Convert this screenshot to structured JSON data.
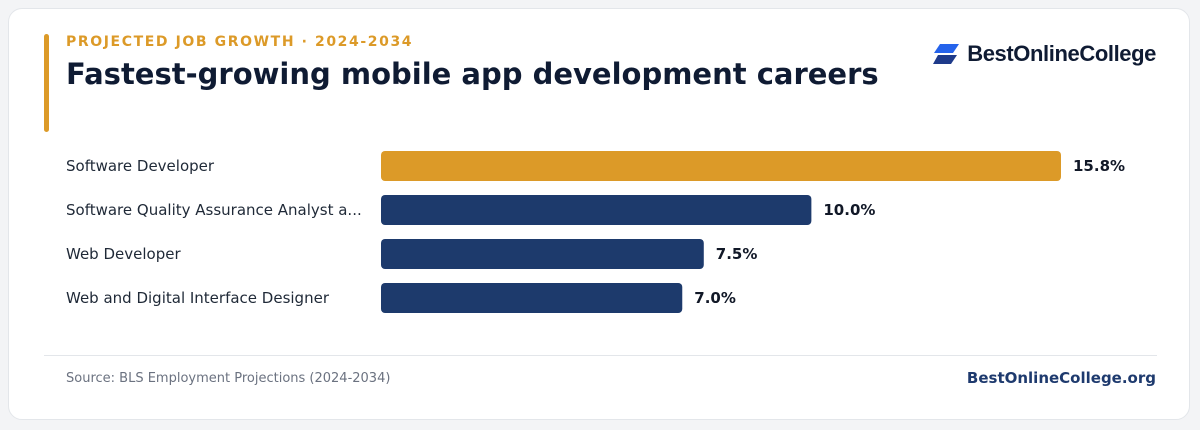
{
  "header": {
    "eyebrow": "PROJECTED JOB GROWTH · 2024-2034",
    "title": "Fastest-growing mobile app development careers"
  },
  "logo": {
    "text": "BestOnlineCollege",
    "icon": "logo-mark-icon"
  },
  "footer": {
    "source": "Source: BLS Employment Projections (2024-2034)",
    "site": "BestOnlineCollege.org"
  },
  "colors": {
    "accent": "#dc9a28",
    "bar_primary": "#1d3a6c",
    "title": "#0f1b33",
    "logo_blue": "#2563eb"
  },
  "chart_data": {
    "type": "bar",
    "orientation": "horizontal",
    "title": "",
    "xlabel": "",
    "ylabel": "",
    "categories": [
      "Software Developer",
      "Software Quality Assurance Analyst a...",
      "Web Developer",
      "Web and Digital Interface Designer"
    ],
    "values": [
      15.8,
      10.0,
      7.5,
      7.0
    ],
    "value_labels": [
      "15.8%",
      "10.0%",
      "7.5%",
      "7.0%"
    ],
    "highlight_index": 0,
    "xlim": [
      0,
      15.8
    ],
    "grid": false,
    "legend": "none"
  }
}
